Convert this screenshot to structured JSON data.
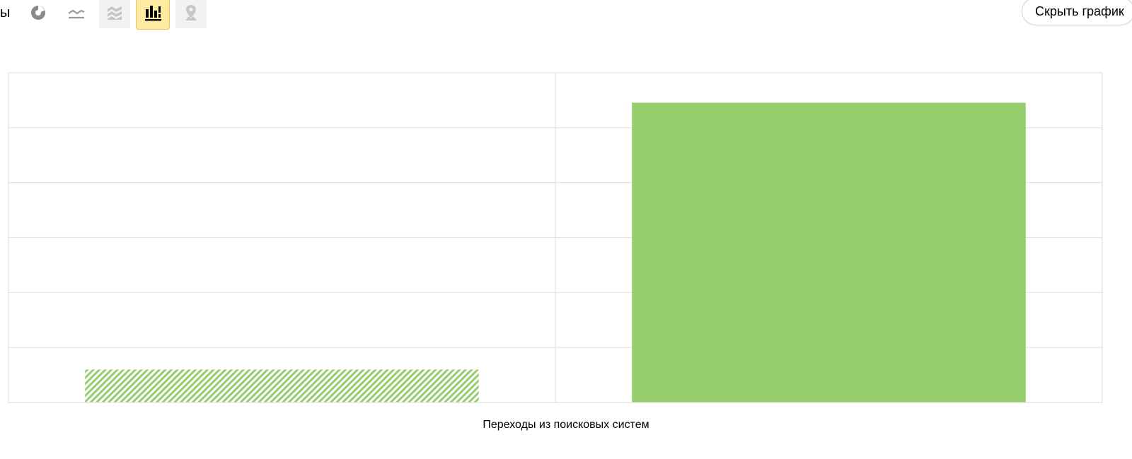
{
  "toolbar": {
    "partial_label": "ы",
    "hide_chart_label": "Скрыть график",
    "icons": [
      {
        "name": "pie-chart-icon",
        "state": "plain"
      },
      {
        "name": "line-chart-icon",
        "state": "plain"
      },
      {
        "name": "stacked-area-icon",
        "state": "inactive"
      },
      {
        "name": "bar-chart-icon",
        "state": "active"
      },
      {
        "name": "map-pin-icon",
        "state": "inactive"
      }
    ]
  },
  "colors": {
    "bar": "#96cd6c",
    "grid": "#e1e1e1",
    "active_button": "#ffeba0"
  },
  "chart_data": {
    "type": "bar",
    "categories": [
      "",
      ""
    ],
    "values": [
      0.11,
      1.0
    ],
    "fill_patterns": [
      "hatched",
      "solid"
    ],
    "xlabel": "Переходы из поисковых систем",
    "ylabel": "",
    "ylim": [
      0,
      1.1
    ],
    "grid": true,
    "legend": "none"
  }
}
